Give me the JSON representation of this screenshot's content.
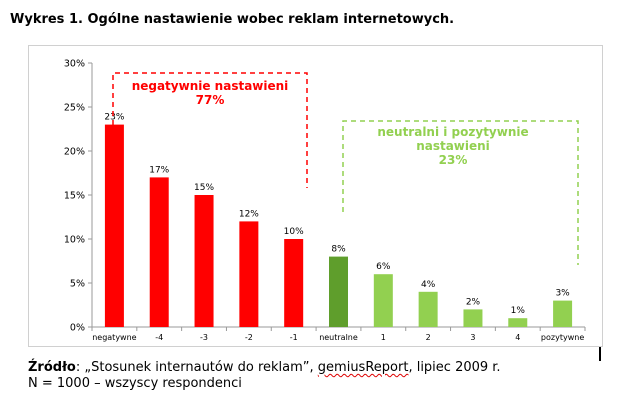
{
  "title": "Wykres 1. Ogólne nastawienie wobec reklam internetowych.",
  "chart_data": {
    "type": "bar",
    "categories": [
      "negatywne",
      "-4",
      "-3",
      "-2",
      "-1",
      "neutralne",
      "1",
      "2",
      "3",
      "4",
      "pozytywne"
    ],
    "values": [
      23,
      17,
      15,
      12,
      10,
      8,
      6,
      4,
      2,
      1,
      3
    ],
    "value_labels": [
      "23%",
      "17%",
      "15%",
      "12%",
      "10%",
      "8%",
      "6%",
      "4%",
      "2%",
      "1%",
      "3%"
    ],
    "bar_colors": [
      "#ff0000",
      "#ff0000",
      "#ff0000",
      "#ff0000",
      "#ff0000",
      "#5f9e2c",
      "#92d050",
      "#92d050",
      "#92d050",
      "#92d050",
      "#92d050"
    ],
    "ylim": [
      0,
      30
    ],
    "yticks": [
      "0%",
      "5%",
      "10%",
      "15%",
      "20%",
      "25%",
      "30%"
    ],
    "grid": false,
    "annotations": [
      {
        "lines": [
          "negatywnie nastawieni",
          "77%"
        ],
        "color": "#ff0000",
        "group": "negative"
      },
      {
        "lines": [
          "neutralni i pozytywnie",
          "nastawieni",
          "23%"
        ],
        "color": "#92d050",
        "group": "positive"
      }
    ]
  },
  "source": {
    "label": "Źródło",
    "text_before": ": „Stosunek internautów do reklam”, ",
    "brand": "gemiusReport",
    "text_after": ", lipiec 2009 r.",
    "line2": "N = 1000 – wszyscy respondenci"
  }
}
